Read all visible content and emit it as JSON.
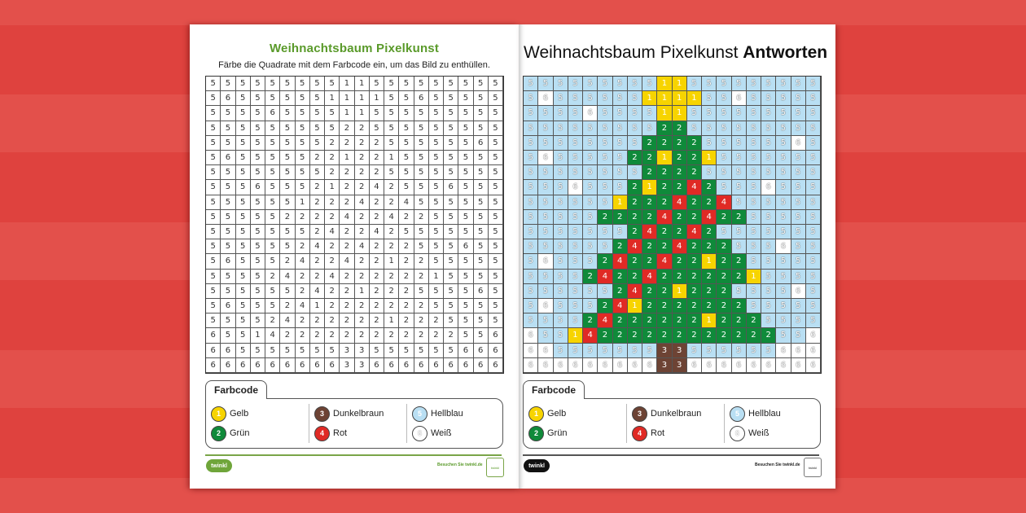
{
  "colors": {
    "1": "#f7d400",
    "2": "#0f8a3a",
    "3": "#6d4334",
    "4": "#e02a25",
    "5": "#b9dff3",
    "6": "#ffffff"
  },
  "worksheet": {
    "title": "Weihnachtsbaum Pixelkunst",
    "instructions": "Färbe die Quadrate mit dem Farbcode ein, um das Bild zu enthüllen."
  },
  "answers": {
    "title_prefix": "Weihnachtsbaum Pixelkunst",
    "title_bold": "Antworten"
  },
  "grid": [
    [
      5,
      5,
      5,
      5,
      5,
      5,
      5,
      5,
      5,
      1,
      1,
      5,
      5,
      5,
      5,
      5,
      5,
      5,
      5,
      5
    ],
    [
      5,
      6,
      5,
      5,
      5,
      5,
      5,
      5,
      1,
      1,
      1,
      1,
      5,
      5,
      6,
      5,
      5,
      5,
      5,
      5
    ],
    [
      5,
      5,
      5,
      5,
      6,
      5,
      5,
      5,
      5,
      1,
      1,
      5,
      5,
      5,
      5,
      5,
      5,
      5,
      5,
      5
    ],
    [
      5,
      5,
      5,
      5,
      5,
      5,
      5,
      5,
      5,
      2,
      2,
      5,
      5,
      5,
      5,
      5,
      5,
      5,
      5,
      5
    ],
    [
      5,
      5,
      5,
      5,
      5,
      5,
      5,
      5,
      2,
      2,
      2,
      2,
      5,
      5,
      5,
      5,
      5,
      5,
      6,
      5
    ],
    [
      5,
      6,
      5,
      5,
      5,
      5,
      5,
      2,
      2,
      1,
      2,
      2,
      1,
      5,
      5,
      5,
      5,
      5,
      5,
      5
    ],
    [
      5,
      5,
      5,
      5,
      5,
      5,
      5,
      5,
      2,
      2,
      2,
      2,
      5,
      5,
      5,
      5,
      5,
      5,
      5,
      5
    ],
    [
      5,
      5,
      5,
      6,
      5,
      5,
      5,
      2,
      1,
      2,
      2,
      4,
      2,
      5,
      5,
      5,
      6,
      5,
      5,
      5
    ],
    [
      5,
      5,
      5,
      5,
      5,
      5,
      1,
      2,
      2,
      2,
      4,
      2,
      2,
      4,
      5,
      5,
      5,
      5,
      5,
      5
    ],
    [
      5,
      5,
      5,
      5,
      5,
      2,
      2,
      2,
      2,
      4,
      2,
      2,
      4,
      2,
      2,
      5,
      5,
      5,
      5,
      5
    ],
    [
      5,
      5,
      5,
      5,
      5,
      5,
      5,
      2,
      4,
      2,
      2,
      4,
      2,
      5,
      5,
      5,
      5,
      5,
      5,
      5
    ],
    [
      5,
      5,
      5,
      5,
      5,
      5,
      2,
      4,
      2,
      2,
      4,
      2,
      2,
      2,
      5,
      5,
      5,
      6,
      5,
      5
    ],
    [
      5,
      6,
      5,
      5,
      5,
      2,
      4,
      2,
      2,
      4,
      2,
      2,
      1,
      2,
      2,
      5,
      5,
      5,
      5,
      5
    ],
    [
      5,
      5,
      5,
      5,
      2,
      4,
      2,
      2,
      4,
      2,
      2,
      2,
      2,
      2,
      2,
      1,
      5,
      5,
      5,
      5
    ],
    [
      5,
      5,
      5,
      5,
      5,
      5,
      2,
      4,
      2,
      2,
      1,
      2,
      2,
      2,
      5,
      5,
      5,
      5,
      6,
      5
    ],
    [
      5,
      6,
      5,
      5,
      5,
      2,
      4,
      1,
      2,
      2,
      2,
      2,
      2,
      2,
      2,
      5,
      5,
      5,
      5,
      5
    ],
    [
      5,
      5,
      5,
      5,
      2,
      4,
      2,
      2,
      2,
      2,
      2,
      2,
      1,
      2,
      2,
      2,
      5,
      5,
      5,
      5
    ],
    [
      6,
      5,
      5,
      1,
      4,
      2,
      2,
      2,
      2,
      2,
      2,
      2,
      2,
      2,
      2,
      2,
      2,
      5,
      5,
      6
    ],
    [
      6,
      6,
      5,
      5,
      5,
      5,
      5,
      5,
      5,
      3,
      3,
      5,
      5,
      5,
      5,
      5,
      5,
      6,
      6,
      6
    ],
    [
      6,
      6,
      6,
      6,
      6,
      6,
      6,
      6,
      6,
      3,
      3,
      6,
      6,
      6,
      6,
      6,
      6,
      6,
      6,
      6
    ]
  ],
  "legend": {
    "title": "Farbcode",
    "items": [
      {
        "num": "1",
        "label": "Gelb",
        "color": "#f7d400"
      },
      {
        "num": "2",
        "label": "Grün",
        "color": "#0f8a3a"
      },
      {
        "num": "3",
        "label": "Dunkelbraun",
        "color": "#6d4334"
      },
      {
        "num": "4",
        "label": "Rot",
        "color": "#e02a25"
      },
      {
        "num": "5",
        "label": "Hellblau",
        "color": "#b9dff3"
      },
      {
        "num": "6",
        "label": "Weiß",
        "color": "#ffffff"
      }
    ]
  },
  "footer": {
    "logo": "twinkl",
    "visit_text": "Besuchen Sie twinkl.de",
    "badge": "twinkl"
  }
}
